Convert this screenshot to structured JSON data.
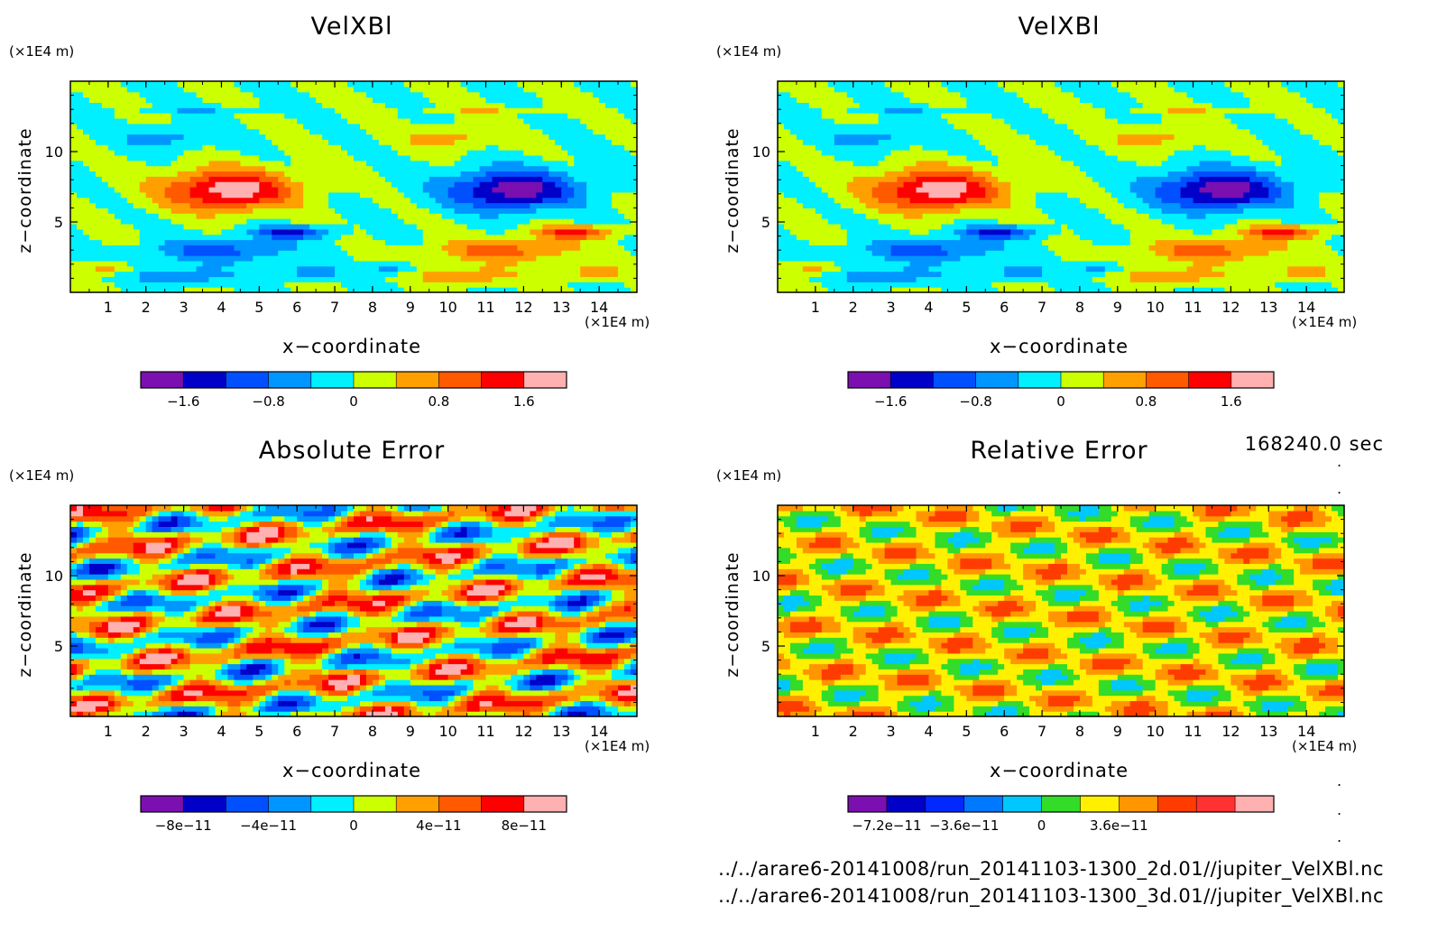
{
  "figure": {
    "time_label": "168240.0 sec",
    "files": [
      "../../arare6-20141008/run_20141103-1300_2d.01//jupiter_VelXBl.nc",
      "../../arare6-20141008/run_20141103-1300_3d.01//jupiter_VelXBl.nc"
    ]
  },
  "panels_text": [
    {
      "title": "VelXBl",
      "xlabel": "x−coordinate",
      "ylabel": "z−coordinate",
      "xunit": "(×1E4 m)",
      "yunit": "(×1E4 m)"
    },
    {
      "title": "VelXBl",
      "xlabel": "x−coordinate",
      "ylabel": "z−coordinate",
      "xunit": "(×1E4 m)",
      "yunit": "(×1E4 m)"
    },
    {
      "title": "Absolute Error",
      "xlabel": "x−coordinate",
      "ylabel": "z−coordinate",
      "xunit": "(×1E4 m)",
      "yunit": "(×1E4 m)"
    },
    {
      "title": "Relative Error",
      "xlabel": "x−coordinate",
      "ylabel": "z−coordinate",
      "xunit": "(×1E4 m)",
      "yunit": "(×1E4 m)"
    }
  ],
  "chart_data": [
    {
      "type": "heatmap",
      "title": "VelXBl",
      "xlabel": "x−coordinate",
      "ylabel": "z−coordinate",
      "xunit": "(×1E4 m)",
      "yunit": "(×1E4 m)",
      "xlim": [
        0,
        15
      ],
      "ylim": [
        0,
        15
      ],
      "xticks": [
        "1",
        "2",
        "3",
        "4",
        "5",
        "6",
        "7",
        "8",
        "9",
        "10",
        "11",
        "12",
        "13",
        "14"
      ],
      "yticks": [
        "5",
        "10"
      ],
      "colorbar": {
        "colors": [
          "#7b0fb0",
          "#0000c8",
          "#0050ff",
          "#0096ff",
          "#00f0ff",
          "#ccff00",
          "#ffa000",
          "#ff5a00",
          "#ff0000",
          "#ffb0b0"
        ],
        "tick_labels": [
          "−1.6",
          "−0.8",
          "0",
          "0.8",
          "1.6"
        ]
      },
      "field": "velxbl"
    },
    {
      "type": "heatmap",
      "title": "VelXBl",
      "xlabel": "x−coordinate",
      "ylabel": "z−coordinate",
      "xunit": "(×1E4 m)",
      "yunit": "(×1E4 m)",
      "xlim": [
        0,
        15
      ],
      "ylim": [
        0,
        15
      ],
      "xticks": [
        "1",
        "2",
        "3",
        "4",
        "5",
        "6",
        "7",
        "8",
        "9",
        "10",
        "11",
        "12",
        "13",
        "14"
      ],
      "yticks": [
        "5",
        "10"
      ],
      "colorbar": {
        "colors": [
          "#7b0fb0",
          "#0000c8",
          "#0050ff",
          "#0096ff",
          "#00f0ff",
          "#ccff00",
          "#ffa000",
          "#ff5a00",
          "#ff0000",
          "#ffb0b0"
        ],
        "tick_labels": [
          "−1.6",
          "−0.8",
          "0",
          "0.8",
          "1.6"
        ]
      },
      "field": "velxbl"
    },
    {
      "type": "heatmap",
      "title": "Absolute Error",
      "xlabel": "x−coordinate",
      "ylabel": "z−coordinate",
      "xunit": "(×1E4 m)",
      "yunit": "(×1E4 m)",
      "xlim": [
        0,
        15
      ],
      "ylim": [
        0,
        15
      ],
      "xticks": [
        "1",
        "2",
        "3",
        "4",
        "5",
        "6",
        "7",
        "8",
        "9",
        "10",
        "11",
        "12",
        "13",
        "14"
      ],
      "yticks": [
        "5",
        "10"
      ],
      "colorbar": {
        "colors": [
          "#7b0fb0",
          "#0000c8",
          "#0050ff",
          "#0096ff",
          "#00f0ff",
          "#ccff00",
          "#ffa000",
          "#ff5a00",
          "#ff0000",
          "#ffb0b0"
        ],
        "tick_labels": [
          "−8e−11",
          "−4e−11",
          "0",
          "4e−11",
          "8e−11"
        ]
      },
      "field": "abserr"
    },
    {
      "type": "heatmap",
      "title": "Relative Error",
      "xlabel": "x−coordinate",
      "ylabel": "z−coordinate",
      "xunit": "(×1E4 m)",
      "yunit": "(×1E4 m)",
      "xlim": [
        0,
        15
      ],
      "ylim": [
        0,
        15
      ],
      "xticks": [
        "1",
        "2",
        "3",
        "4",
        "5",
        "6",
        "7",
        "8",
        "9",
        "10",
        "11",
        "12",
        "13",
        "14"
      ],
      "yticks": [
        "5",
        "10"
      ],
      "colorbar": {
        "colors": [
          "#7b0fb0",
          "#0000c8",
          "#0028ff",
          "#0078ff",
          "#00c8ff",
          "#32dc28",
          "#fff000",
          "#ff9600",
          "#ff3c00",
          "#ff3232",
          "#ffb0b0"
        ],
        "tick_labels": [
          "−7.2e−11",
          "−3.6e−11",
          "0",
          "3.6e−11"
        ]
      },
      "field": "relerr"
    }
  ]
}
